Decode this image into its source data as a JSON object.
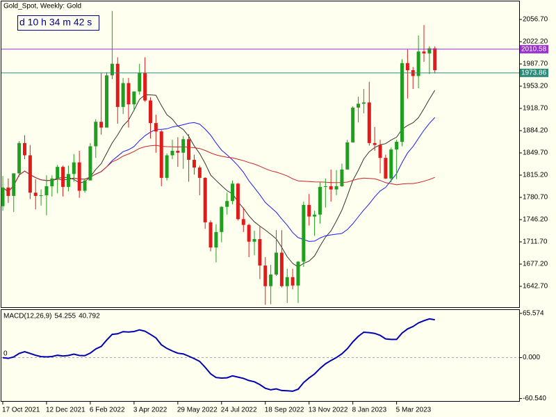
{
  "chart_data": {
    "type": "candlestick",
    "title": "Gold_Spot, Weekly:  Gold",
    "timer": "d 10 h 34 m 42 s",
    "categories": [
      "17 Oct 2021",
      null,
      null,
      null,
      null,
      null,
      null,
      null,
      "12 Dec 2021",
      null,
      null,
      null,
      null,
      null,
      null,
      null,
      "6 Feb 2022",
      null,
      null,
      null,
      null,
      null,
      null,
      null,
      "3 Apr 2022",
      null,
      null,
      null,
      null,
      null,
      null,
      null,
      "29 May 2022",
      null,
      null,
      null,
      null,
      null,
      null,
      null,
      "24 Jul 2022",
      null,
      null,
      null,
      null,
      null,
      null,
      null,
      "18 Sep 2022",
      null,
      null,
      null,
      null,
      null,
      null,
      null,
      "13 Nov 2022",
      null,
      null,
      null,
      null,
      null,
      null,
      null,
      "8 Jan 2023",
      null,
      null,
      null,
      null,
      null,
      null,
      null,
      "5 Mar 2023",
      null,
      null,
      null,
      null,
      null,
      null,
      null
    ],
    "open": [
      1767,
      1796,
      1783,
      1818,
      1865,
      1846,
      1788,
      1783,
      1784,
      1798,
      1810,
      1828,
      1797,
      1817,
      1835,
      1791,
      1807,
      1860,
      1898,
      1889,
      1970,
      1988,
      1921,
      1958,
      1925,
      1945,
      1974,
      1931,
      1896,
      1883,
      1811,
      1846,
      1853,
      1850,
      1871,
      1839,
      1827,
      1811,
      1742,
      1703,
      1727,
      1766,
      1775,
      1802,
      1747,
      1738,
      1712,
      1716,
      1675,
      1643,
      1661,
      1695,
      1643,
      1657,
      1644,
      1681,
      1769,
      1751,
      1754,
      1797,
      1798,
      1793,
      1798,
      1824,
      1866,
      1920,
      1926,
      1928,
      1865,
      1862,
      1842,
      1810,
      1855,
      1867,
      1989,
      1978,
      1969,
      2007,
      2004,
      2012
    ],
    "high": [
      1814,
      1810,
      1818,
      1868,
      1877,
      1862,
      1809,
      1793,
      1815,
      1815,
      1831,
      1830,
      1830,
      1848,
      1853,
      1810,
      1865,
      1902,
      1974,
      1975,
      2070,
      1998,
      1966,
      1966,
      1945,
      1988,
      1998,
      1936,
      1909,
      1885,
      1849,
      1870,
      1874,
      1876,
      1879,
      1847,
      1830,
      1812,
      1745,
      1739,
      1767,
      1788,
      1807,
      1803,
      1765,
      1740,
      1729,
      1735,
      1688,
      1676,
      1730,
      1730,
      1670,
      1670,
      1682,
      1774,
      1786,
      1760,
      1804,
      1810,
      1824,
      1823,
      1833,
      1870,
      1922,
      1937,
      1949,
      1960,
      1890,
      1870,
      1847,
      1858,
      1870,
      1995,
      2010,
      1983,
      2032,
      2048,
      2015,
      2015
    ],
    "low": [
      1760,
      1772,
      1758,
      1813,
      1840,
      1778,
      1762,
      1768,
      1753,
      1782,
      1787,
      1782,
      1790,
      1805,
      1780,
      1788,
      1807,
      1842,
      1878,
      1889,
      1964,
      1895,
      1910,
      1889,
      1915,
      1940,
      1929,
      1872,
      1850,
      1798,
      1807,
      1840,
      1828,
      1825,
      1805,
      1816,
      1784,
      1732,
      1697,
      1680,
      1711,
      1754,
      1770,
      1745,
      1727,
      1688,
      1691,
      1654,
      1614,
      1615,
      1659,
      1641,
      1617,
      1638,
      1617,
      1673,
      1737,
      1721,
      1740,
      1765,
      1774,
      1784,
      1797,
      1824,
      1866,
      1897,
      1911,
      1861,
      1853,
      1818,
      1809,
      1804,
      1809,
      1860,
      1934,
      1949,
      1950,
      1991,
      1972,
      1973
    ],
    "close": [
      1796,
      1783,
      1818,
      1865,
      1846,
      1788,
      1783,
      1784,
      1798,
      1810,
      1828,
      1797,
      1817,
      1835,
      1791,
      1807,
      1860,
      1898,
      1889,
      1970,
      1988,
      1921,
      1958,
      1925,
      1945,
      1974,
      1931,
      1896,
      1883,
      1811,
      1846,
      1853,
      1850,
      1871,
      1839,
      1827,
      1811,
      1742,
      1703,
      1727,
      1766,
      1775,
      1802,
      1747,
      1738,
      1712,
      1716,
      1675,
      1643,
      1661,
      1695,
      1643,
      1657,
      1644,
      1681,
      1769,
      1751,
      1754,
      1797,
      1798,
      1793,
      1798,
      1824,
      1866,
      1920,
      1926,
      1928,
      1865,
      1862,
      1842,
      1810,
      1855,
      1867,
      1989,
      1978,
      1969,
      2007,
      2004,
      2012,
      1978
    ],
    "up_color": "#1f9e1f",
    "down_color": "#e01b1b",
    "ylim": [
      1609.3,
      2086.9
    ],
    "yticks": [
      {
        "value": 2056.7,
        "label": "2056.70"
      },
      {
        "value": 2022.2,
        "label": "2022.20"
      },
      {
        "value": 1987.7,
        "label": "1987.70"
      },
      {
        "value": 1953.2,
        "label": "1953.20"
      },
      {
        "value": 1918.7,
        "label": "1918.70"
      },
      {
        "value": 1884.2,
        "label": "1884.20"
      },
      {
        "value": 1849.7,
        "label": "1849.70"
      },
      {
        "value": 1815.2,
        "label": "1815.20"
      },
      {
        "value": 1780.7,
        "label": "1780.70"
      },
      {
        "value": 1746.2,
        "label": "1746.20"
      },
      {
        "value": 1711.7,
        "label": "1711.70"
      },
      {
        "value": 1677.2,
        "label": "1677.20"
      },
      {
        "value": 1642.7,
        "label": "1642.70"
      }
    ],
    "price_lines": [
      {
        "value": 2010.58,
        "color": "#9932cc"
      },
      {
        "value": 1973.86,
        "color": "#2e8b7a"
      }
    ],
    "moving_averages": [
      {
        "period": 10,
        "color": "#333333"
      },
      {
        "period": 20,
        "color": "#1a1aff"
      },
      {
        "period": 50,
        "color": "#cc2222"
      }
    ],
    "macd": {
      "name": "MACD(12,26,9)",
      "macd_value": 54.255,
      "signal_value": 40.792,
      "zero_label": "0",
      "color": "#0000b0",
      "ylim": [
        -65.3,
        71.6
      ],
      "yticks": [
        {
          "value": 65.574,
          "label": "65.574"
        },
        {
          "value": 0,
          "label": "0.000"
        },
        {
          "value": -60.54,
          "label": "-60.540"
        }
      ]
    }
  }
}
